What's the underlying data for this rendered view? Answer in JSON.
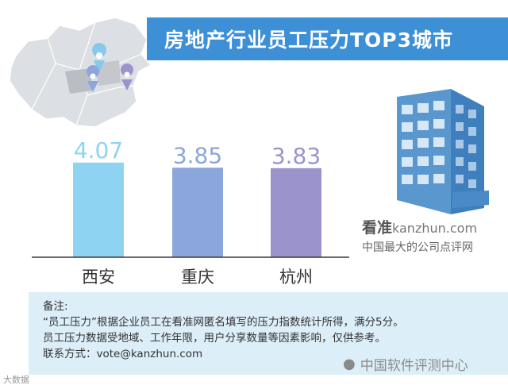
{
  "header": {
    "title": "房地产行业员工压力TOP3城市"
  },
  "chart_data": {
    "type": "bar",
    "title": "房地产行业员工压力TOP3城市",
    "categories": [
      "西安",
      "重庆",
      "杭州"
    ],
    "values": [
      4.07,
      3.85,
      3.83
    ],
    "value_labels": [
      "4.07",
      "3.85",
      "3.83"
    ],
    "ylim": [
      0,
      5
    ],
    "grid": false,
    "colors": [
      "#8fd3f2",
      "#8aa6db",
      "#9b93cc"
    ]
  },
  "brand": {
    "name": "看准",
    "domain": "kanzhun.com",
    "slogan": "中国最大的公司点评网"
  },
  "note": {
    "heading": "备注:",
    "line1": "“员工压力”根据企业员工在看准网匿名填写的压力指数统计所得，满分5分。",
    "line2": "员工压力数据受地域、工作年限，用户分享数量等因素影响，仅供参考。",
    "line3": "联系方式：vote@kanzhun.com"
  },
  "footer": {
    "left": "大数据",
    "right": "中国软件评测中心"
  },
  "colors": {
    "accent": "#3d8fd6",
    "note_bg": "#dceef8",
    "baseline": "#3a3a3a"
  },
  "icons": [
    "china-map-icon",
    "location-pin-icon",
    "building-icon",
    "wechat-icon"
  ]
}
